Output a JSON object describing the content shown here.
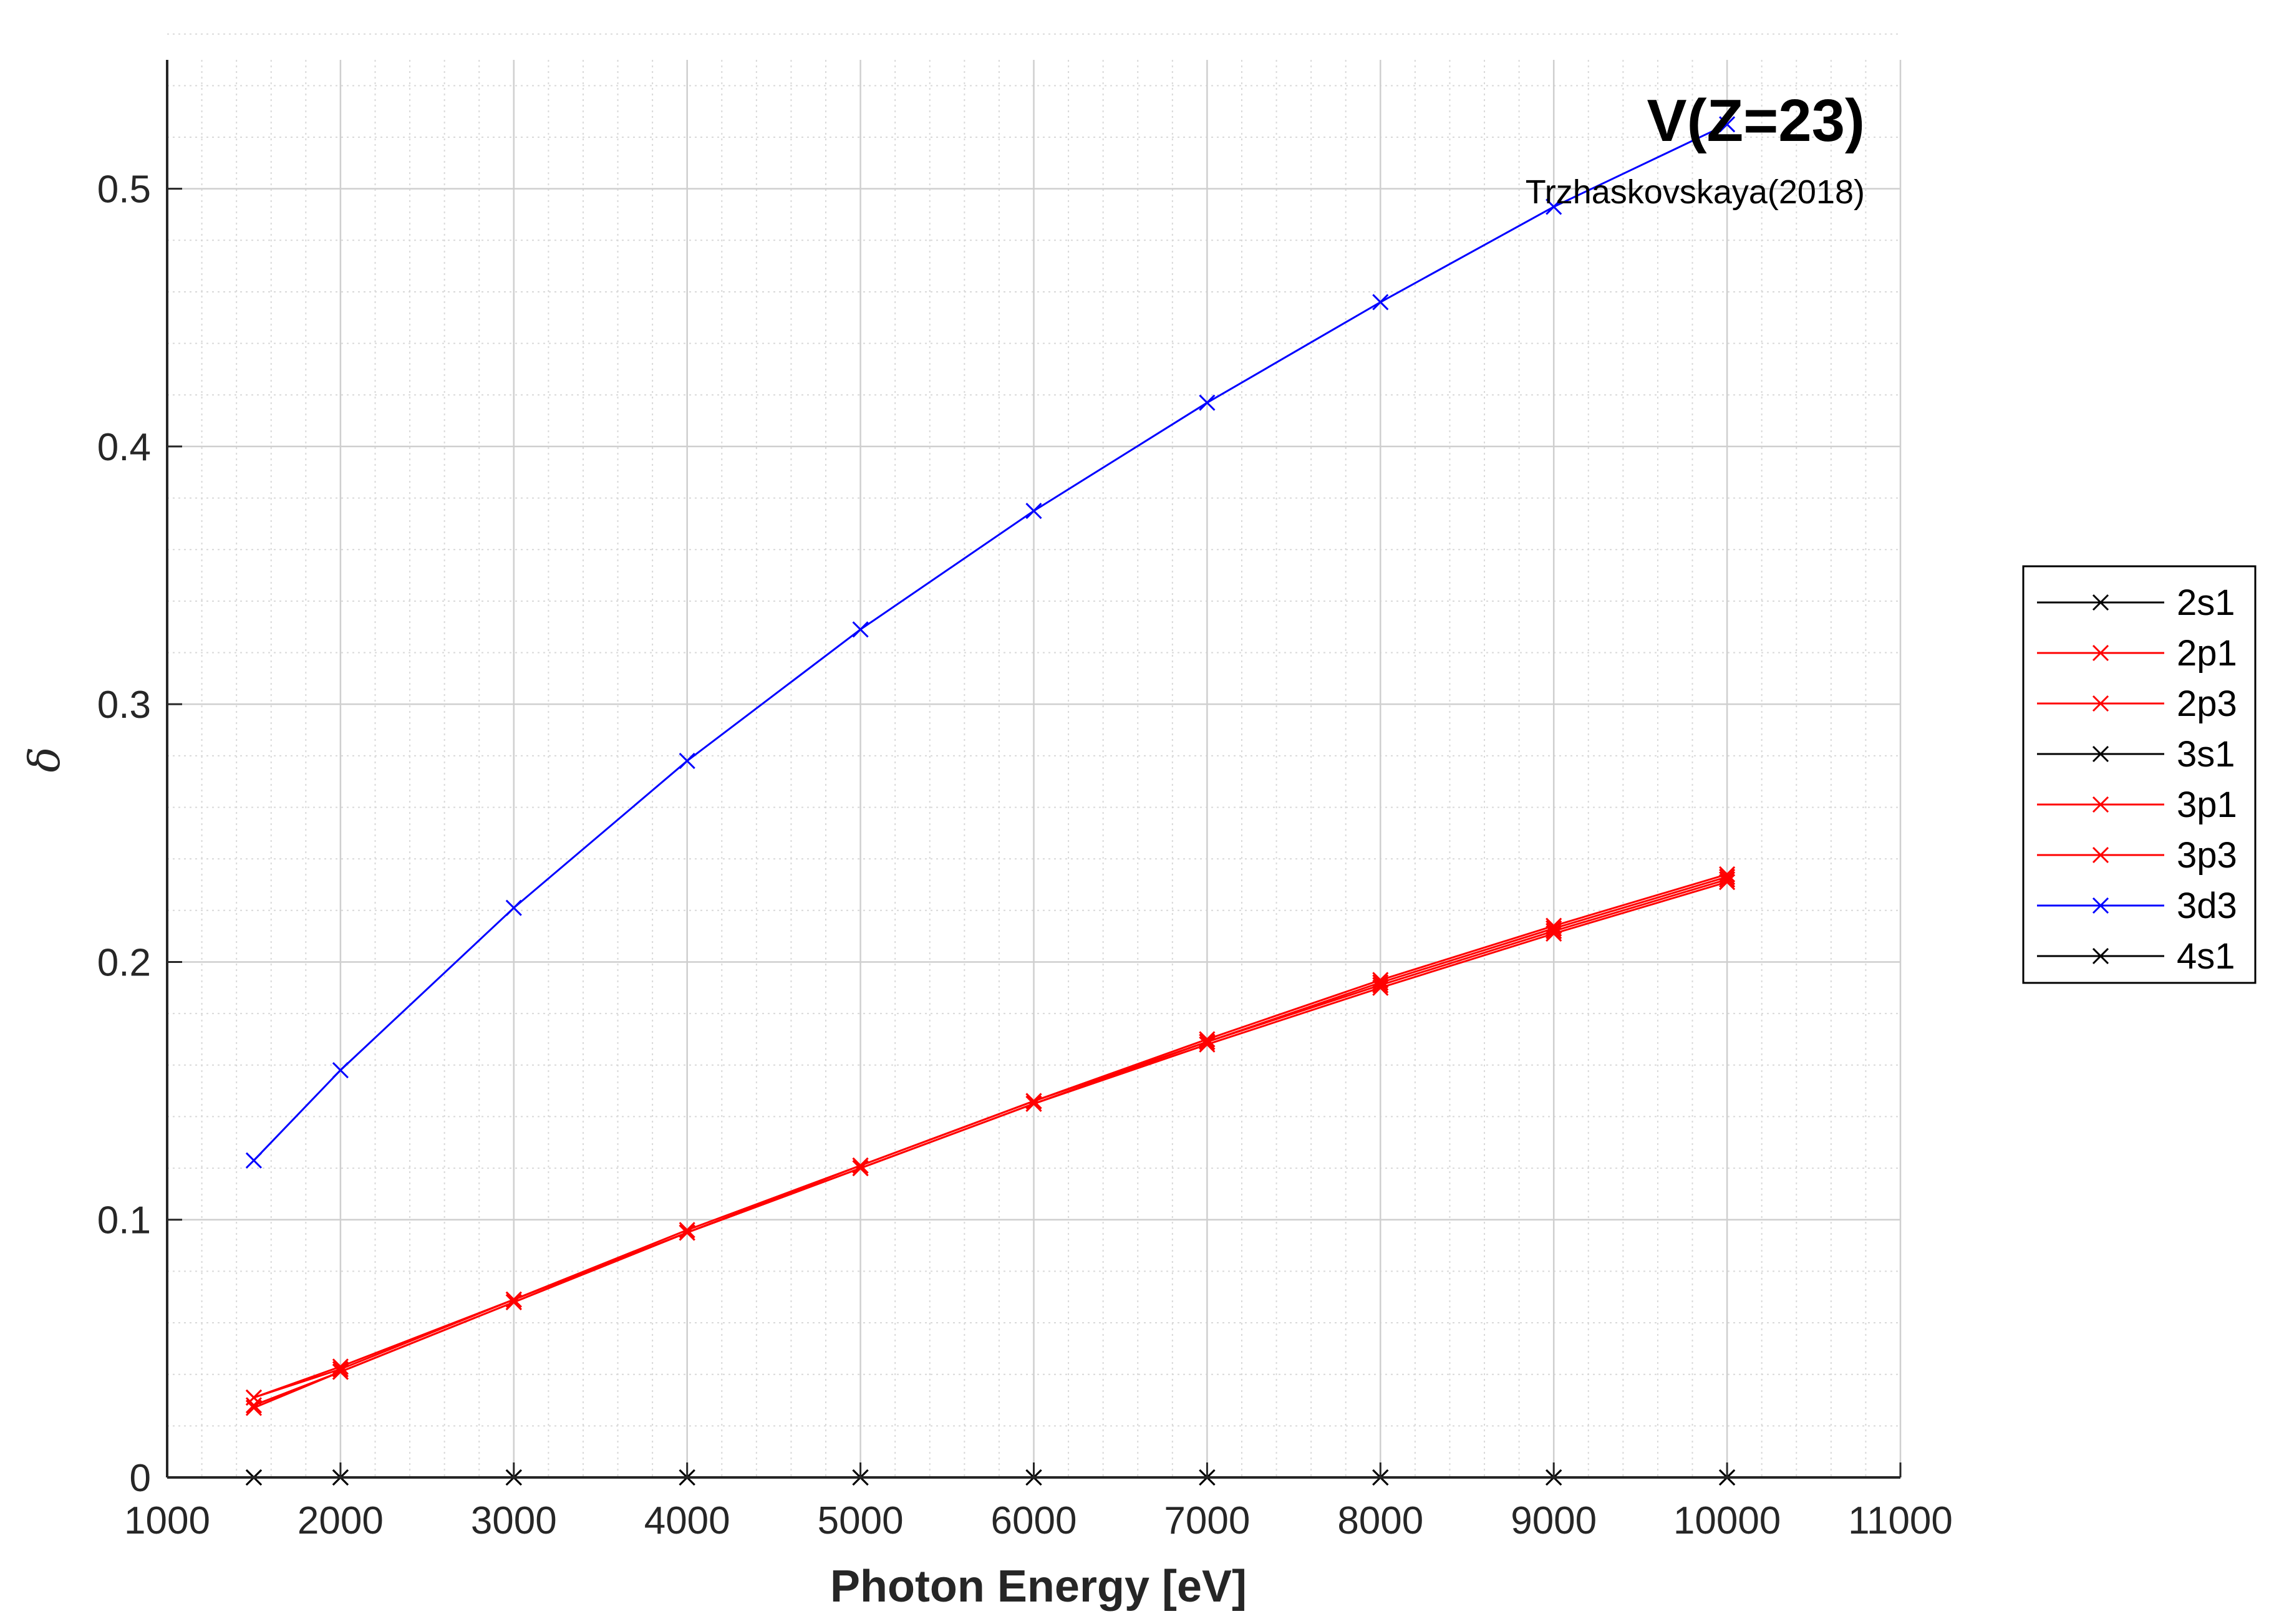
{
  "chart_data": {
    "type": "line",
    "title": "V(Z=23)",
    "subtitle": "Trzhaskovskaya(2018)",
    "xlabel": "Photon Energy [eV]",
    "ylabel": "δ",
    "xlim": [
      1000,
      11000
    ],
    "ylim": [
      0,
      0.55
    ],
    "xticks": [
      1000,
      2000,
      3000,
      4000,
      5000,
      6000,
      7000,
      8000,
      9000,
      10000,
      11000
    ],
    "yticks": [
      0,
      0.1,
      0.2,
      0.3,
      0.4,
      0.5
    ],
    "grid": "on (major and minor)",
    "legend_position": "outside-right",
    "marker": "x",
    "x": [
      1500,
      2000,
      3000,
      4000,
      5000,
      6000,
      7000,
      8000,
      9000,
      10000
    ],
    "series": [
      {
        "name": "2s1",
        "color": "#000000",
        "values": [
          0,
          0,
          0,
          0,
          0,
          0,
          0,
          0,
          0,
          0
        ]
      },
      {
        "name": "2p1",
        "color": "#ff0000",
        "values": [
          0.027,
          0.041,
          0.068,
          0.095,
          0.12,
          0.145,
          0.168,
          0.19,
          0.211,
          0.231
        ]
      },
      {
        "name": "2p3",
        "color": "#ff0000",
        "values": [
          0.031,
          0.042,
          0.069,
          0.095,
          0.121,
          0.146,
          0.169,
          0.192,
          0.213,
          0.233
        ]
      },
      {
        "name": "3s1",
        "color": "#000000",
        "values": [
          0,
          0,
          0,
          0,
          0,
          0,
          0,
          0,
          0,
          0
        ]
      },
      {
        "name": "3p1",
        "color": "#ff0000",
        "values": [
          0.028,
          0.041,
          0.068,
          0.095,
          0.12,
          0.145,
          0.169,
          0.191,
          0.212,
          0.232
        ]
      },
      {
        "name": "3p3",
        "color": "#ff0000",
        "values": [
          0.031,
          0.043,
          0.069,
          0.096,
          0.121,
          0.146,
          0.17,
          0.193,
          0.214,
          0.234
        ]
      },
      {
        "name": "3d3",
        "color": "#0000ff",
        "values": [
          0.123,
          0.158,
          0.221,
          0.278,
          0.329,
          0.375,
          0.417,
          0.456,
          0.493,
          0.525
        ]
      },
      {
        "name": "4s1",
        "color": "#000000",
        "values": [
          0,
          0,
          0,
          0,
          0,
          0,
          0,
          0,
          0,
          0
        ]
      }
    ]
  }
}
